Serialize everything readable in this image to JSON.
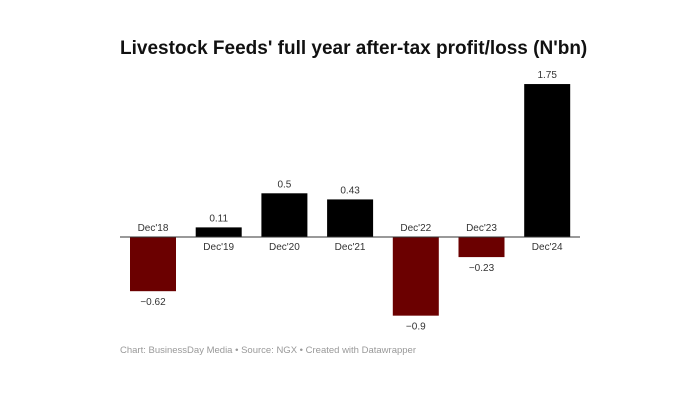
{
  "chart_data": {
    "type": "bar",
    "title": "Livestock Feeds' full year after-tax profit/loss (N'bn)",
    "categories": [
      "Dec'18",
      "Dec'19",
      "Dec'20",
      "Dec'21",
      "Dec'22",
      "Dec'23",
      "Dec'24"
    ],
    "values": [
      -0.62,
      0.11,
      0.5,
      0.43,
      -0.9,
      -0.23,
      1.75
    ],
    "value_labels": [
      "−0.62",
      "0.11",
      "0.5",
      "0.43",
      "−0.9",
      "−0.23",
      "1.75"
    ],
    "ylim": [
      -0.9,
      1.75
    ],
    "grid": false,
    "colors": {
      "positive": "#000000",
      "negative": "#6b0000"
    },
    "footer": "Chart: BusinessDay Media • Source: NGX • Created with Datawrapper"
  }
}
